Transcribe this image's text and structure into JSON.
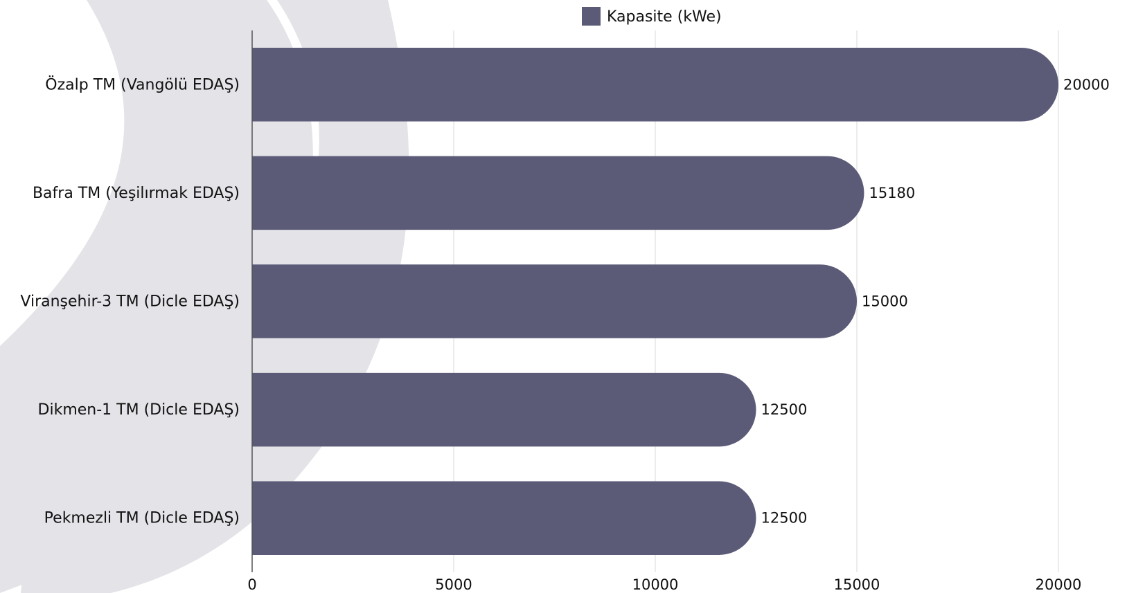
{
  "chart_data": {
    "type": "bar",
    "orientation": "horizontal",
    "categories": [
      "Özalp TM (Vangölü EDAŞ)",
      "Bafra TM (Yeşilırmak EDAŞ)",
      "Viranşehir-3 TM (Dicle EDAŞ)",
      "Dikmen-1 TM (Dicle EDAŞ)",
      "Pekmezli TM (Dicle EDAŞ)"
    ],
    "series": [
      {
        "name": "Kapasite (kWe)",
        "values": [
          20000,
          15180,
          15000,
          12500,
          12500
        ]
      }
    ],
    "data_labels": [
      "20000",
      "15180",
      "15000",
      "12500",
      "12500"
    ],
    "xlim": [
      0,
      20000
    ],
    "x_ticks": [
      0,
      5000,
      10000,
      15000,
      20000
    ],
    "x_tick_labels": [
      "0",
      "5000",
      "10000",
      "15000",
      "20000"
    ],
    "xlabel": "",
    "ylabel": "",
    "grid": "vertical",
    "legend_position": "top-center",
    "colors": {
      "bar": "#5b5b78",
      "grid": "#d9d9d9",
      "axis": "#555555",
      "watermark": "#e3e3e8"
    }
  }
}
